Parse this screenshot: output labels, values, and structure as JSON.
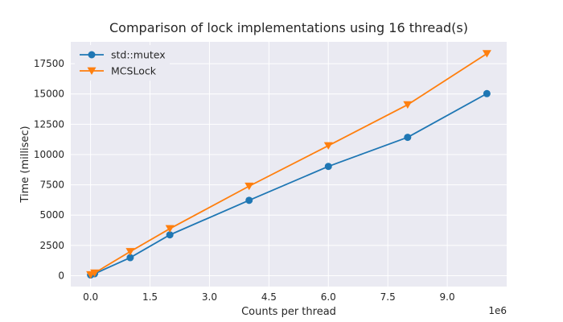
{
  "chart_data": {
    "type": "line",
    "title": "Comparison of lock implementations using 16 thread(s)",
    "xlabel": "Counts per thread",
    "ylabel": "Time (millisec)",
    "x_offset_label": "1e6",
    "xlim": [
      -0.5,
      10.5
    ],
    "ylim": [
      -900,
      19300
    ],
    "xticks": [
      0.0,
      1.5,
      3.0,
      4.5,
      6.0,
      7.5,
      9.0
    ],
    "xtick_labels": [
      "0.0",
      "1.5",
      "3.0",
      "4.5",
      "6.0",
      "7.5",
      "9.0"
    ],
    "yticks": [
      0,
      2500,
      5000,
      7500,
      10000,
      12500,
      15000,
      17500
    ],
    "ytick_labels": [
      "0",
      "2500",
      "5000",
      "7500",
      "10000",
      "12500",
      "15000",
      "17500"
    ],
    "grid": true,
    "legend_position": "top-left",
    "series": [
      {
        "name": "std::mutex",
        "color": "#1f77b4",
        "marker": "circle",
        "x": [
          0.0,
          0.1,
          1.0,
          2.0,
          4.0,
          6.0,
          8.0,
          10.0
        ],
        "y": [
          60,
          160,
          1490,
          3370,
          6220,
          9020,
          11420,
          15030
        ]
      },
      {
        "name": "MCSLock",
        "color": "#ff7f0e",
        "marker": "triangle-down",
        "x": [
          0.0,
          0.1,
          1.0,
          2.0,
          4.0,
          6.0,
          8.0,
          10.0
        ],
        "y": [
          80,
          220,
          1990,
          3880,
          7390,
          10730,
          14110,
          18330
        ]
      }
    ]
  }
}
